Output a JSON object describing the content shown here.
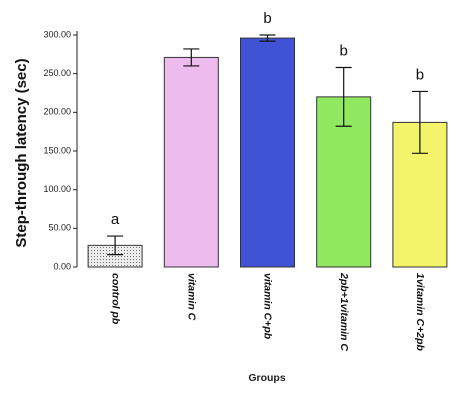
{
  "chart_data": {
    "type": "bar",
    "categories": [
      "control pb",
      "vitamin C",
      "vitamin C+pb",
      "2pb+1vitamin C",
      "1vitamin C+2pb"
    ],
    "values": [
      28,
      271,
      296,
      220,
      187
    ],
    "errors": [
      12,
      11,
      4,
      38,
      40
    ],
    "significance": [
      "a",
      "",
      "b",
      "b",
      "b"
    ],
    "bar_colors": [
      "#e6e6e6",
      "#eebbee",
      "#4052d6",
      "#8fe860",
      "#f4f46a"
    ],
    "first_bar_pattern": "dotted",
    "xlabel": "Groups",
    "ylabel": "Step-through latency (sec)",
    "yticks": [
      "0.00",
      "50.00",
      "100.00",
      "150.00",
      "200.00",
      "250.00",
      "300.00"
    ],
    "ylim": [
      0,
      300
    ],
    "grid": false
  }
}
